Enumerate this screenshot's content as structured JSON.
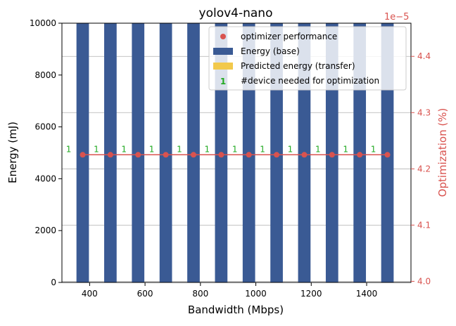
{
  "colors": {
    "bar": "#3a5a94",
    "line": "#d9534f",
    "marker": "#d9534f",
    "device_label": "#22aa22",
    "right_axis": "#d9534f",
    "grid": "#b0b0b0",
    "legend_transfer": "#f2c94c"
  },
  "chart_data": {
    "type": "bar",
    "title": "yolov4-nano",
    "xlabel": "Bandwidth (Mbps)",
    "ylabel": "Energy (mJ)",
    "y2label": "Optimization (%)",
    "y2_offset_text": "1e−5",
    "xlim": [
      300,
      1560
    ],
    "ylim": [
      0,
      10000
    ],
    "y2lim": [
      3.998,
      4.459
    ],
    "xticks": [
      400,
      600,
      800,
      1000,
      1200,
      1400
    ],
    "yticks": [
      0,
      2000,
      4000,
      6000,
      8000,
      10000
    ],
    "y2ticks": [
      4.0,
      4.1,
      4.2,
      4.3,
      4.4
    ],
    "y2ticklabels": [
      "4.0",
      "4.1",
      "4.2",
      "4.3",
      "4.4"
    ],
    "grid": "horizontal (right axis)",
    "legend_position": "upper right",
    "legend": [
      {
        "label": "optimizer performance",
        "kind": "marker"
      },
      {
        "label": "Energy (base)",
        "kind": "bar"
      },
      {
        "label": "Predicted energy (transfer)",
        "kind": "bar-transfer"
      },
      {
        "label": "#device needed for optimization",
        "kind": "text",
        "symbol": "1"
      }
    ],
    "bar_width": 45,
    "series": [
      {
        "name": "Energy (base)",
        "x": [
          375,
          475,
          575,
          675,
          775,
          875,
          975,
          1075,
          1175,
          1275,
          1375,
          1475
        ],
        "values": [
          10000,
          10000,
          10000,
          10000,
          10000,
          10000,
          10000,
          10000,
          10000,
          10000,
          10000,
          10000
        ]
      },
      {
        "name": "optimizer performance",
        "x": [
          375,
          475,
          575,
          675,
          775,
          875,
          975,
          1075,
          1175,
          1275,
          1375,
          1475
        ],
        "values": [
          4.225,
          4.225,
          4.225,
          4.225,
          4.225,
          4.225,
          4.225,
          4.225,
          4.225,
          4.225,
          4.225,
          4.225
        ],
        "axis": "right"
      }
    ],
    "device_counts": [
      1,
      1,
      1,
      1,
      1,
      1,
      1,
      1,
      1,
      1,
      1,
      1
    ]
  }
}
